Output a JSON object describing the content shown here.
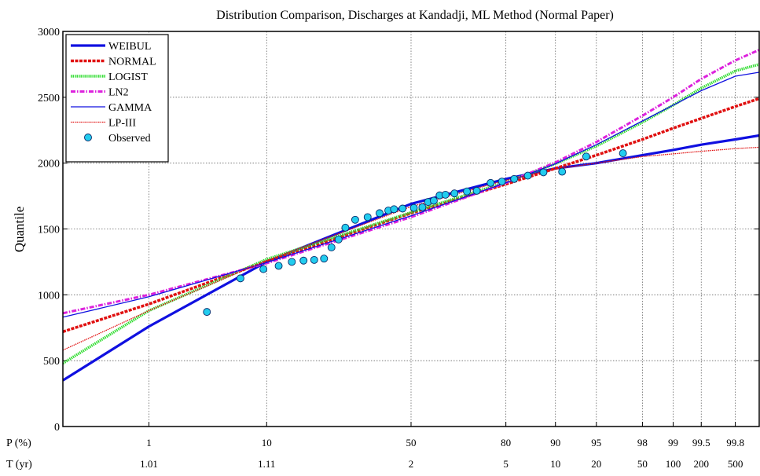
{
  "chart_data": {
    "type": "line",
    "title": "Distribution Comparison, Discharges at Kandadji,  ML Method (Normal Paper)",
    "xlabel": "",
    "ylabel": "Quantile",
    "ylim": [
      0,
      3000
    ],
    "yticks": [
      0,
      500,
      1000,
      1500,
      2000,
      2500,
      3000
    ],
    "xscale": "normal-probability",
    "xlim_percent": [
      0.1,
      99.9
    ],
    "p_row_label": "P (%)",
    "t_row_label": "T (yr)",
    "x_ticks": [
      {
        "p": 1,
        "p_label": "1",
        "t_label": "1.01"
      },
      {
        "p": 10,
        "p_label": "10",
        "t_label": "1.11"
      },
      {
        "p": 50,
        "p_label": "50",
        "t_label": "2"
      },
      {
        "p": 80,
        "p_label": "80",
        "t_label": "5"
      },
      {
        "p": 90,
        "p_label": "90",
        "t_label": "10"
      },
      {
        "p": 95,
        "p_label": "95",
        "t_label": "20"
      },
      {
        "p": 98,
        "p_label": "98",
        "t_label": "50"
      },
      {
        "p": 99,
        "p_label": "99",
        "t_label": "100"
      },
      {
        "p": 99.5,
        "p_label": "99.5",
        "t_label": "200"
      },
      {
        "p": 99.8,
        "p_label": "99.8",
        "t_label": "500"
      }
    ],
    "grid": true,
    "legend_position": "top-left",
    "series": [
      {
        "name": "WEIBUL",
        "kind": "line",
        "color": "#1010e0",
        "style": "solid-thick",
        "points": [
          [
            0.1,
            350
          ],
          [
            1,
            760
          ],
          [
            10,
            1250
          ],
          [
            50,
            1690
          ],
          [
            80,
            1880
          ],
          [
            90,
            1960
          ],
          [
            95,
            2000
          ],
          [
            98,
            2060
          ],
          [
            99,
            2100
          ],
          [
            99.5,
            2140
          ],
          [
            99.8,
            2180
          ],
          [
            99.9,
            2210
          ]
        ]
      },
      {
        "name": "NORMAL",
        "kind": "line",
        "color": "#e01010",
        "style": "dashed-thick",
        "points": [
          [
            0.1,
            720
          ],
          [
            1,
            930
          ],
          [
            10,
            1255
          ],
          [
            50,
            1620
          ],
          [
            80,
            1840
          ],
          [
            90,
            1960
          ],
          [
            95,
            2060
          ],
          [
            98,
            2180
          ],
          [
            99,
            2265
          ],
          [
            99.5,
            2340
          ],
          [
            99.8,
            2430
          ],
          [
            99.9,
            2490
          ]
        ]
      },
      {
        "name": "LOGIST",
        "kind": "line",
        "color": "#33dd33",
        "style": "dotted-thick",
        "points": [
          [
            0.1,
            480
          ],
          [
            1,
            880
          ],
          [
            10,
            1270
          ],
          [
            50,
            1625
          ],
          [
            80,
            1855
          ],
          [
            90,
            1995
          ],
          [
            95,
            2130
          ],
          [
            98,
            2310
          ],
          [
            99,
            2440
          ],
          [
            99.5,
            2570
          ],
          [
            99.8,
            2700
          ],
          [
            99.9,
            2750
          ]
        ]
      },
      {
        "name": "LN2",
        "kind": "line",
        "color": "#dd22dd",
        "style": "dashdot-thick",
        "points": [
          [
            0.1,
            860
          ],
          [
            1,
            1000
          ],
          [
            10,
            1240
          ],
          [
            50,
            1590
          ],
          [
            80,
            1850
          ],
          [
            90,
            2005
          ],
          [
            95,
            2160
          ],
          [
            98,
            2360
          ],
          [
            99,
            2500
          ],
          [
            99.5,
            2640
          ],
          [
            99.8,
            2780
          ],
          [
            99.9,
            2860
          ]
        ]
      },
      {
        "name": "GAMMA",
        "kind": "line",
        "color": "#1010e0",
        "style": "solid-thin",
        "points": [
          [
            0.1,
            830
          ],
          [
            1,
            985
          ],
          [
            10,
            1245
          ],
          [
            50,
            1600
          ],
          [
            80,
            1850
          ],
          [
            90,
            1995
          ],
          [
            95,
            2140
          ],
          [
            98,
            2320
          ],
          [
            99,
            2440
          ],
          [
            99.5,
            2550
          ],
          [
            99.8,
            2660
          ],
          [
            99.9,
            2690
          ]
        ]
      },
      {
        "name": "LP-III",
        "kind": "line",
        "color": "#e01010",
        "style": "dotted-thin",
        "points": [
          [
            0.1,
            580
          ],
          [
            1,
            880
          ],
          [
            10,
            1260
          ],
          [
            50,
            1670
          ],
          [
            80,
            1870
          ],
          [
            90,
            1955
          ],
          [
            95,
            2000
          ],
          [
            98,
            2050
          ],
          [
            99,
            2070
          ],
          [
            99.5,
            2090
          ],
          [
            99.8,
            2110
          ],
          [
            99.9,
            2120
          ]
        ]
      },
      {
        "name": "Observed",
        "kind": "scatter",
        "color": "#22ccee",
        "points": [
          [
            3.5,
            870
          ],
          [
            6.5,
            1125
          ],
          [
            9.5,
            1195
          ],
          [
            12,
            1220
          ],
          [
            14.5,
            1250
          ],
          [
            17,
            1260
          ],
          [
            19.5,
            1265
          ],
          [
            22,
            1275
          ],
          [
            24,
            1360
          ],
          [
            26,
            1420
          ],
          [
            28,
            1510
          ],
          [
            31,
            1570
          ],
          [
            35,
            1590
          ],
          [
            39,
            1620
          ],
          [
            42,
            1640
          ],
          [
            44,
            1650
          ],
          [
            47,
            1655
          ],
          [
            51,
            1660
          ],
          [
            54,
            1665
          ],
          [
            56,
            1705
          ],
          [
            58,
            1715
          ],
          [
            60,
            1755
          ],
          [
            62,
            1760
          ],
          [
            65,
            1770
          ],
          [
            69,
            1785
          ],
          [
            72,
            1790
          ],
          [
            76,
            1850
          ],
          [
            79,
            1860
          ],
          [
            82,
            1880
          ],
          [
            85,
            1905
          ],
          [
            88,
            1930
          ],
          [
            91,
            1935
          ],
          [
            94,
            2050
          ],
          [
            97,
            2075
          ]
        ]
      }
    ]
  }
}
